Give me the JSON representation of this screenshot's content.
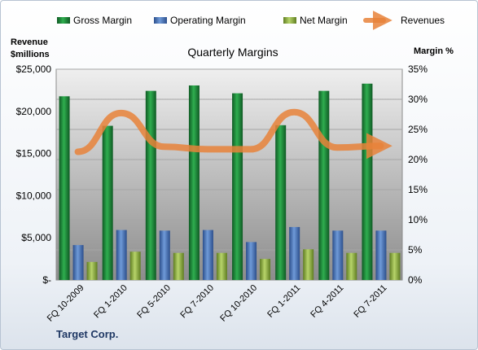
{
  "chart_data": {
    "type": "bar",
    "title": "Quarterly Margins",
    "footer": "Target Corp.",
    "left_axis_title": [
      "Revenue",
      "$millions"
    ],
    "right_axis_title": "Margin %",
    "categories": [
      "FQ 10-2009",
      "FQ 1-2010",
      "FQ 5-2010",
      "FQ 7-2010",
      "FQ 10-2010",
      "FQ 1-2011",
      "FQ 4-2011",
      "FQ 7-2011"
    ],
    "left_axis": {
      "min": 0,
      "max": 25000,
      "step": 5000,
      "tick_labels": [
        "$-",
        "$5,000",
        "$10,000",
        "$15,000",
        "$20,000",
        "$25,000"
      ]
    },
    "right_axis": {
      "min": 0,
      "max": 35,
      "step": 5,
      "tick_labels": [
        "0%",
        "5%",
        "10%",
        "15%",
        "20%",
        "25%",
        "30%",
        "35%"
      ]
    },
    "series": [
      {
        "name": "Gross Margin",
        "axis": "right",
        "kind": "bar",
        "color": "#1e8a3a",
        "values": [
          30.5,
          25.6,
          31.4,
          32.3,
          31.0,
          25.7,
          31.4,
          32.6
        ]
      },
      {
        "name": "Operating Margin",
        "axis": "right",
        "kind": "bar",
        "color": "#4a78c0",
        "values": [
          5.8,
          8.3,
          8.2,
          8.3,
          6.3,
          8.8,
          8.2,
          8.2
        ]
      },
      {
        "name": "Net Margin",
        "axis": "right",
        "kind": "bar",
        "color": "#94b84a",
        "values": [
          3.0,
          4.7,
          4.5,
          4.5,
          3.5,
          5.1,
          4.5,
          4.5
        ]
      },
      {
        "name": "Revenues",
        "axis": "left",
        "kind": "line",
        "color": "#e8823a",
        "values": [
          15200,
          19800,
          15800,
          15500,
          15500,
          19900,
          15700,
          15900
        ]
      }
    ],
    "grid": true,
    "legend_position": "top"
  }
}
